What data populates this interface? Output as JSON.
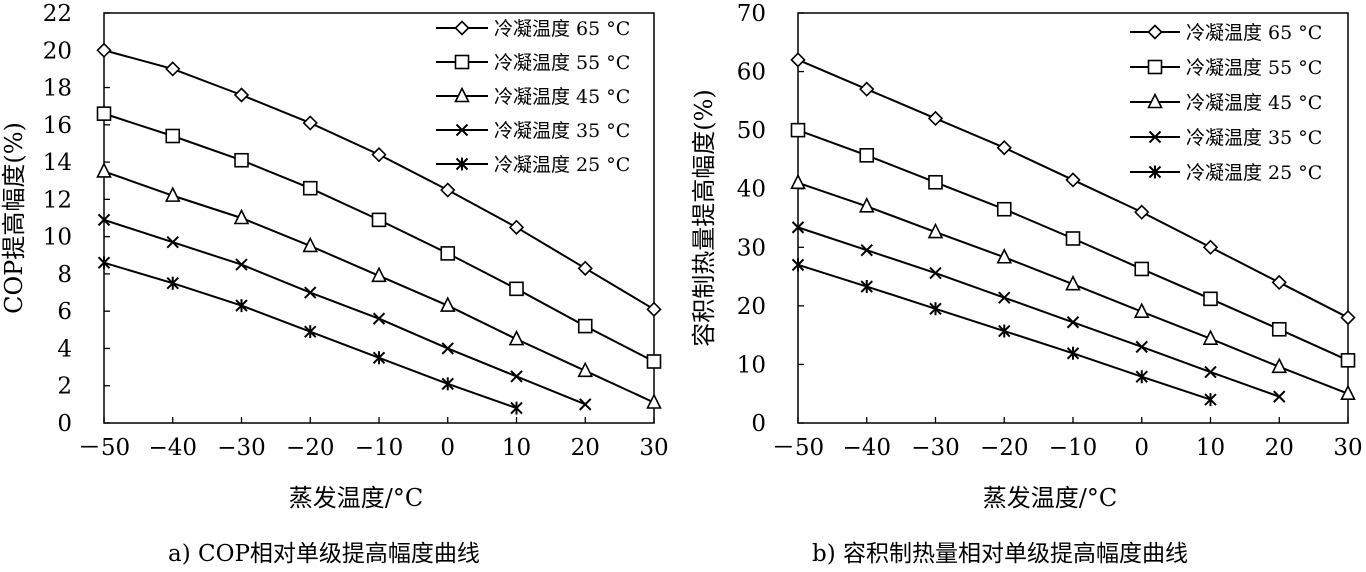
{
  "chart_data": [
    {
      "type": "line",
      "caption": "a) COP相对单级提高幅度曲线",
      "xlabel": "蒸发温度/°C",
      "ylabel": "COP提高幅度(%)",
      "xlim": [
        -50,
        30
      ],
      "ylim": [
        0,
        22
      ],
      "xticks": [
        -50,
        -40,
        -30,
        -20,
        -10,
        0,
        10,
        20,
        30
      ],
      "xtick_labels": [
        "－50",
        "−40",
        "−30",
        "−20",
        "−10",
        "0",
        "10",
        "20",
        "30"
      ],
      "yticks": [
        0,
        2,
        4,
        6,
        8,
        10,
        12,
        14,
        16,
        18,
        20,
        22
      ],
      "grid": false,
      "legend": "top-right",
      "series": [
        {
          "name": "冷凝温度 65 °C",
          "marker": "diamond",
          "x": [
            -50,
            -40,
            -30,
            -20,
            -10,
            0,
            10,
            20,
            30
          ],
          "y": [
            20.0,
            19.0,
            17.6,
            16.1,
            14.4,
            12.5,
            10.5,
            8.3,
            6.1
          ]
        },
        {
          "name": "冷凝温度 55 °C",
          "marker": "square",
          "x": [
            -50,
            -40,
            -30,
            -20,
            -10,
            0,
            10,
            20,
            30
          ],
          "y": [
            16.6,
            15.4,
            14.1,
            12.6,
            10.9,
            9.1,
            7.2,
            5.2,
            3.3
          ]
        },
        {
          "name": "冷凝温度 45 °C",
          "marker": "triangle",
          "x": [
            -50,
            -40,
            -30,
            -20,
            -10,
            0,
            10,
            20,
            30
          ],
          "y": [
            13.5,
            12.2,
            11.0,
            9.5,
            7.9,
            6.3,
            4.5,
            2.8,
            1.1
          ]
        },
        {
          "name": "冷凝温度 35 °C",
          "marker": "x",
          "x": [
            -50,
            -40,
            -30,
            -20,
            -10,
            0,
            10,
            20
          ],
          "y": [
            10.9,
            9.7,
            8.5,
            7.0,
            5.6,
            4.0,
            2.5,
            1.0
          ]
        },
        {
          "name": "冷凝温度 25 °C",
          "marker": "star",
          "x": [
            -50,
            -40,
            -30,
            -20,
            -10,
            0,
            10
          ],
          "y": [
            8.6,
            7.5,
            6.3,
            4.9,
            3.5,
            2.1,
            0.8
          ]
        }
      ]
    },
    {
      "type": "line",
      "caption": "b) 容积制热量相对单级提高幅度曲线",
      "xlabel": "蒸发温度/°C",
      "ylabel": "容积制热量提高幅度(%)",
      "xlim": [
        -50,
        30
      ],
      "ylim": [
        0,
        70
      ],
      "xticks": [
        -50,
        -40,
        -30,
        -20,
        -10,
        0,
        10,
        20,
        30
      ],
      "xtick_labels": [
        "－50",
        "−40",
        "−30",
        "−20",
        "−10",
        "0",
        "10",
        "20",
        "30"
      ],
      "yticks": [
        0,
        10,
        20,
        30,
        40,
        50,
        60,
        70
      ],
      "grid": false,
      "legend": "top-right",
      "series": [
        {
          "name": "冷凝温度 65 °C",
          "marker": "diamond",
          "x": [
            -50,
            -40,
            -30,
            -20,
            -10,
            0,
            10,
            20,
            30
          ],
          "y": [
            62.0,
            57.0,
            52.0,
            47.0,
            41.5,
            36.0,
            30.0,
            24.0,
            18.0
          ]
        },
        {
          "name": "冷凝温度 55 °C",
          "marker": "square",
          "x": [
            -50,
            -40,
            -30,
            -20,
            -10,
            0,
            10,
            20,
            30
          ],
          "y": [
            50.0,
            45.7,
            41.1,
            36.5,
            31.5,
            26.3,
            21.2,
            16.0,
            10.7
          ]
        },
        {
          "name": "冷凝温度 45 °C",
          "marker": "triangle",
          "x": [
            -50,
            -40,
            -30,
            -20,
            -10,
            0,
            10,
            20,
            30
          ],
          "y": [
            41.0,
            37.0,
            32.6,
            28.3,
            23.7,
            19.0,
            14.4,
            9.6,
            5.0
          ]
        },
        {
          "name": "冷凝温度 35 °C",
          "marker": "x",
          "x": [
            -50,
            -40,
            -30,
            -20,
            -10,
            0,
            10,
            20
          ],
          "y": [
            33.4,
            29.5,
            25.6,
            21.4,
            17.2,
            13.0,
            8.7,
            4.5
          ]
        },
        {
          "name": "冷凝温度 25 °C",
          "marker": "star",
          "x": [
            -50,
            -40,
            -30,
            -20,
            -10,
            0,
            10
          ],
          "y": [
            27.0,
            23.3,
            19.5,
            15.7,
            11.9,
            7.9,
            4.0
          ]
        }
      ]
    }
  ]
}
